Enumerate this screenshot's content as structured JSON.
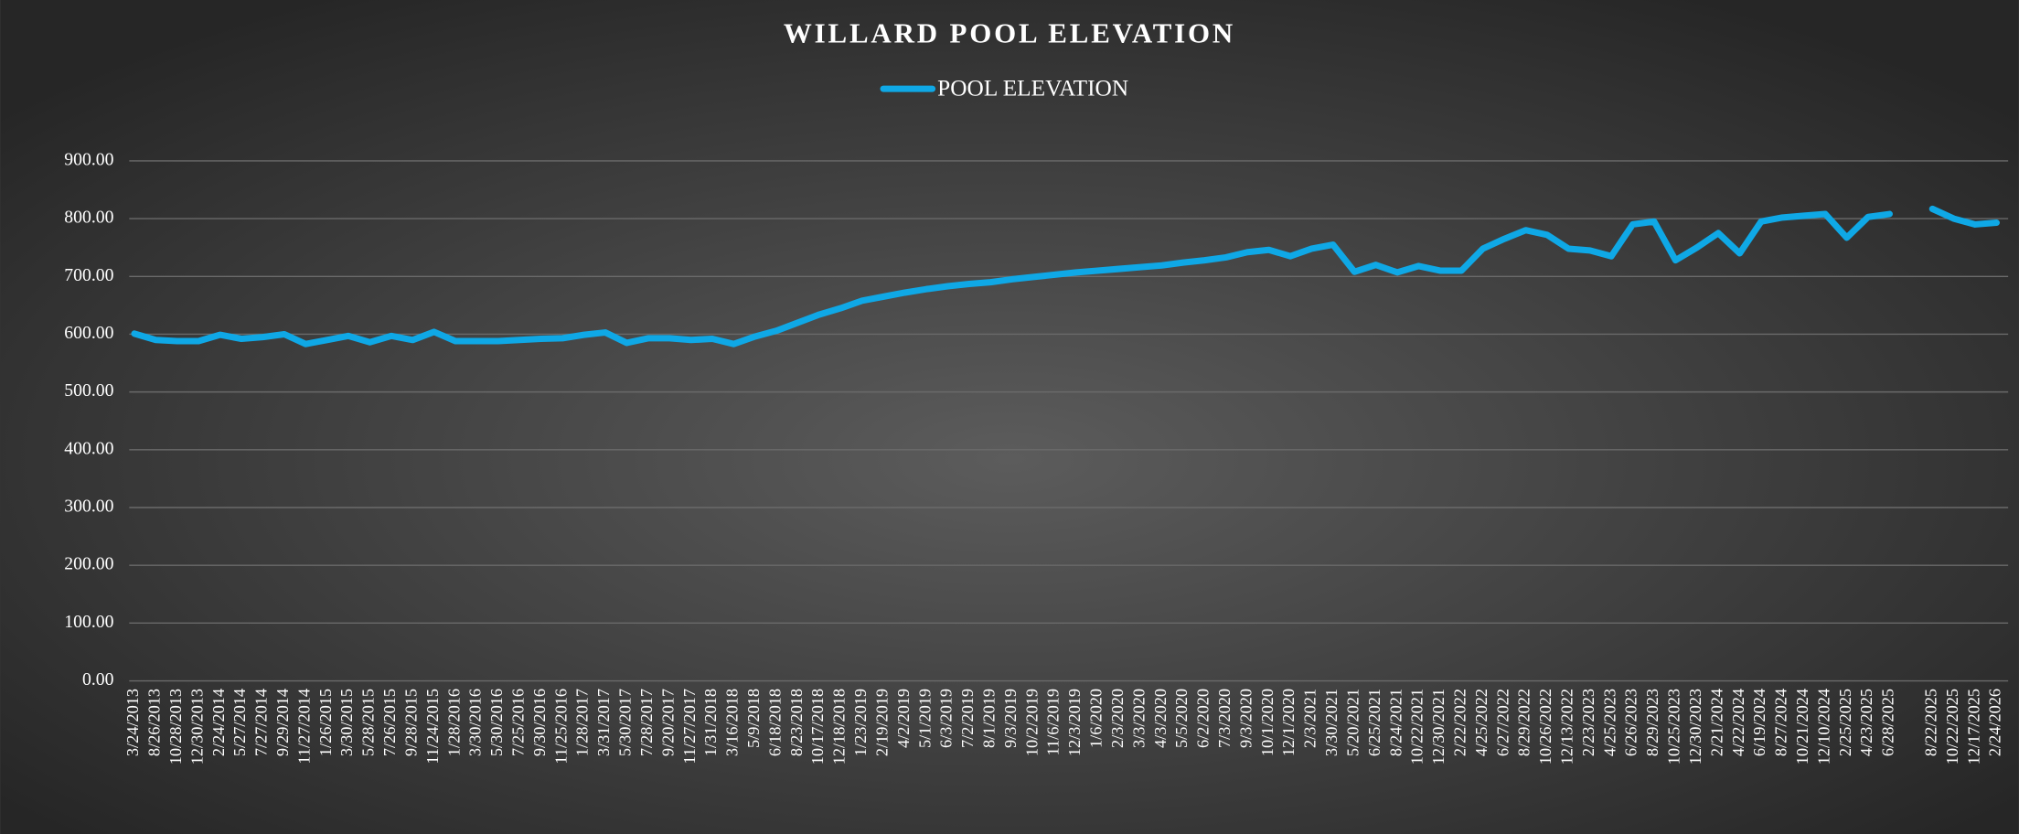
{
  "chart_data": {
    "type": "line",
    "title": "WILLARD POOL ELEVATION",
    "legend": "top",
    "grid": true,
    "categories": [
      "3/24/2013",
      "8/26/2013",
      "10/28/2013",
      "12/30/2013",
      "2/24/2014",
      "5/27/2014",
      "7/27/2014",
      "9/29/2014",
      "11/27/2014",
      "1/26/2015",
      "3/30/2015",
      "5/28/2015",
      "7/26/2015",
      "9/28/2015",
      "11/24/2015",
      "1/28/2016",
      "3/30/2016",
      "5/30/2016",
      "7/25/2016",
      "9/30/2016",
      "11/25/2016",
      "1/28/2017",
      "3/31/2017",
      "5/30/2017",
      "7/28/2017",
      "9/20/2017",
      "11/27/2017",
      "1/31/2018",
      "3/16/2018",
      "5/9/2018",
      "6/18/2018",
      "8/23/2018",
      "10/17/2018",
      "12/18/2018",
      "1/23/2019",
      "2/19/2019",
      "4/2/2019",
      "5/1/2019",
      "6/3/2019",
      "7/2/2019",
      "8/1/2019",
      "9/3/2019",
      "10/2/2019",
      "11/6/2019",
      "12/3/2019",
      "1/6/2020",
      "2/3/2020",
      "3/3/2020",
      "4/3/2020",
      "5/5/2020",
      "6/2/2020",
      "7/3/2020",
      "9/3/2020",
      "10/1/2020",
      "12/1/2020",
      "2/3/2021",
      "3/30/2021",
      "5/20/2021",
      "6/25/2021",
      "8/24/2021",
      "10/22/2021",
      "12/30/2021",
      "2/22/2022",
      "4/25/2022",
      "6/27/2022",
      "8/29/2022",
      "10/26/2022",
      "12/13/2022",
      "2/23/2023",
      "4/25/2023",
      "6/26/2023",
      "8/29/2023",
      "10/25/2023",
      "12/30/2023",
      "2/21/2024",
      "4/22/2024",
      "6/19/2024",
      "8/27/2024",
      "10/21/2024",
      "12/10/2024",
      "2/25/2025",
      "4/23/2025",
      "6/28/2025",
      null,
      "8/22/2025",
      "10/22/2025",
      "12/17/2025",
      "2/24/2026"
    ],
    "series": [
      {
        "name": "POOL ELEVATION",
        "color": "#0fa8e6",
        "values": [
          601,
          590,
          588,
          588,
          599,
          592,
          595,
          600,
          583,
          590,
          597,
          586,
          597,
          590,
          604,
          588,
          588,
          588,
          590,
          592,
          593,
          599,
          603,
          585,
          593,
          593,
          590,
          592,
          583,
          596,
          606,
          620,
          634,
          645,
          658,
          665,
          672,
          678,
          683,
          687,
          690,
          695,
          699,
          703,
          707,
          710,
          713,
          716,
          719,
          724,
          728,
          733,
          742,
          746,
          735,
          748,
          755,
          708,
          720,
          707,
          718,
          710,
          710,
          748,
          765,
          780,
          772,
          748,
          745,
          735,
          790,
          795,
          728,
          750,
          775,
          740,
          795,
          802,
          805,
          808,
          767,
          803,
          808,
          null,
          817,
          800,
          790,
          793
        ]
      }
    ],
    "ylim": [
      0,
      900
    ],
    "yticks": [
      {
        "value": 0,
        "label": "0.00"
      },
      {
        "value": 100,
        "label": "100.00"
      },
      {
        "value": 200,
        "label": "200.00"
      },
      {
        "value": 300,
        "label": "300.00"
      },
      {
        "value": 400,
        "label": "400.00"
      },
      {
        "value": 500,
        "label": "500.00"
      },
      {
        "value": 600,
        "label": "600.00"
      },
      {
        "value": 700,
        "label": "700.00"
      },
      {
        "value": 800,
        "label": "800.00"
      },
      {
        "value": 900,
        "label": "900.00"
      }
    ]
  }
}
